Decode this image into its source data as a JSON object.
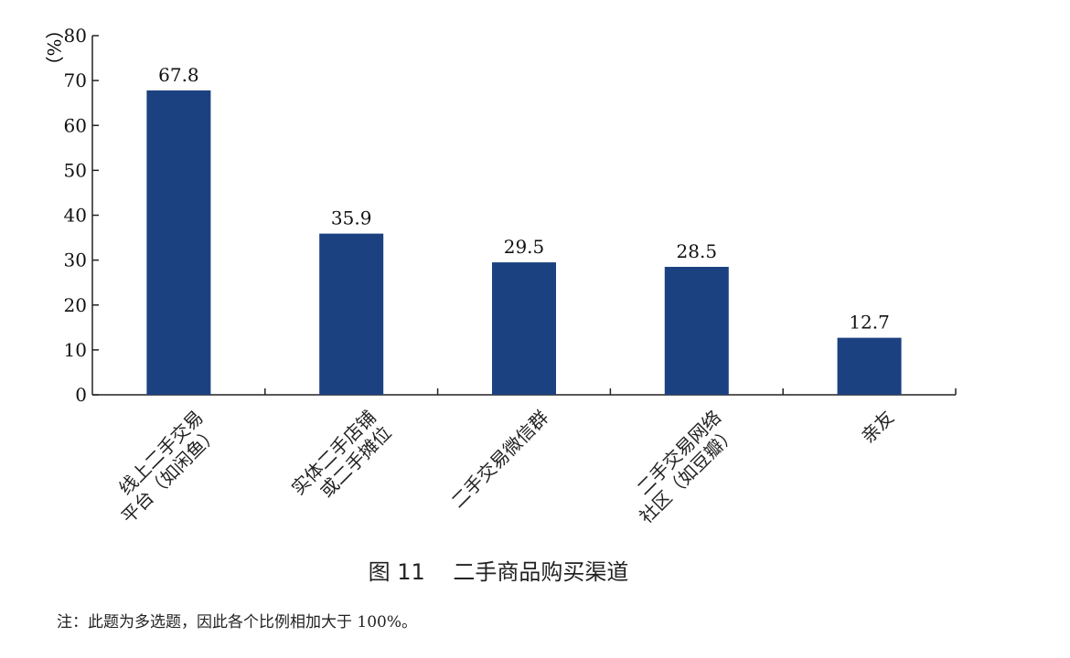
{
  "chart_data": {
    "type": "bar",
    "categories": [
      [
        "线上二手交易",
        "平台（如闲鱼）"
      ],
      [
        "实体二手店铺",
        "或二手摊位"
      ],
      [
        "二手交易微信群"
      ],
      [
        "二手交易网络",
        "社区（如豆瓣）"
      ],
      [
        "亲友"
      ]
    ],
    "values": [
      67.8,
      35.9,
      29.5,
      28.5,
      12.7
    ],
    "value_labels": [
      "67.8",
      "35.9",
      "29.5",
      "28.5",
      "12.7"
    ],
    "ylabel": "（%）",
    "ylim": [
      0,
      80
    ],
    "yticks": [
      0,
      10,
      20,
      30,
      40,
      50,
      60,
      70,
      80
    ],
    "bar_color": "#1c4180",
    "grid": false,
    "legend": "none"
  },
  "caption": {
    "figure_number": "图 11",
    "title": "二手商品购买渠道"
  },
  "note": "注：此题为多选题，因此各个比例相加大于 100%。"
}
